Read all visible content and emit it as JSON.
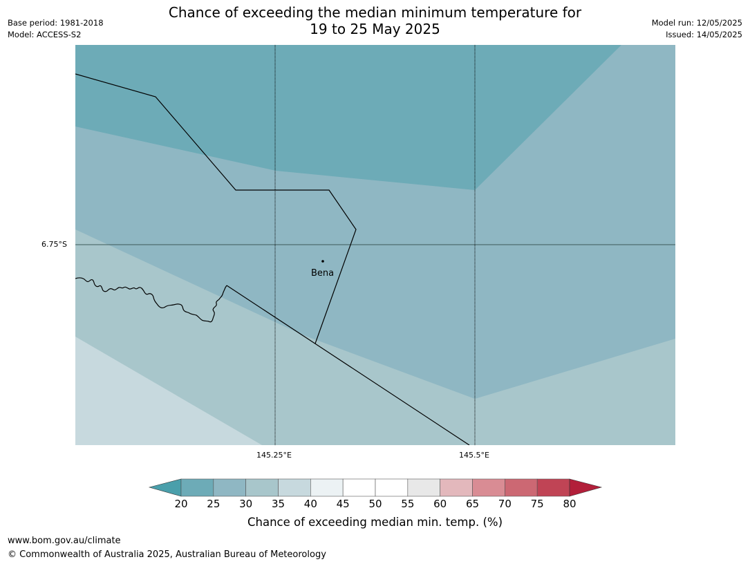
{
  "title": {
    "line1": "Chance of exceeding the median minimum temperature for",
    "line2": "19 to 25 May 2025"
  },
  "meta_left": {
    "base_period": "Base period: 1981-2018",
    "model": "Model: ACCESS-S2"
  },
  "meta_right": {
    "model_run": "Model run: 12/05/2025",
    "issued": "Issued: 14/05/2025"
  },
  "map": {
    "latitude_labels": [
      "6.75°S"
    ],
    "longitude_labels": [
      "145.25°E",
      "145.5°E"
    ],
    "places": [
      {
        "name": "Bena"
      }
    ],
    "colors": {
      "band_20_25": "#6dabb7",
      "band_25_30": "#8fb7c3",
      "band_30_35": "#a8c6cb",
      "band_35_40": "#c7d9de",
      "boundary_line": "#000000",
      "graticule_lat": "#3d5a5a",
      "graticule_lon": "#000000"
    }
  },
  "colorbar": {
    "label": "Chance of exceeding median min. temp. (%)",
    "ticks": [
      "20",
      "25",
      "30",
      "35",
      "40",
      "45",
      "50",
      "55",
      "60",
      "65",
      "70",
      "75",
      "80"
    ],
    "under_color": "#4a9fab",
    "over_color": "#b21f3a",
    "segment_colors": [
      "#6dabb7",
      "#8fb7c3",
      "#a8c6cb",
      "#c7d9de",
      "#ecf2f4",
      "#ffffff",
      "#ffffff",
      "#e8e8e8",
      "#e3b8bc",
      "#d98c94",
      "#cc6873",
      "#c04455"
    ]
  },
  "footer": {
    "url": "www.bom.gov.au/climate",
    "copyright": "© Commonwealth of Australia 2025, Australian Bureau of Meteorology"
  }
}
